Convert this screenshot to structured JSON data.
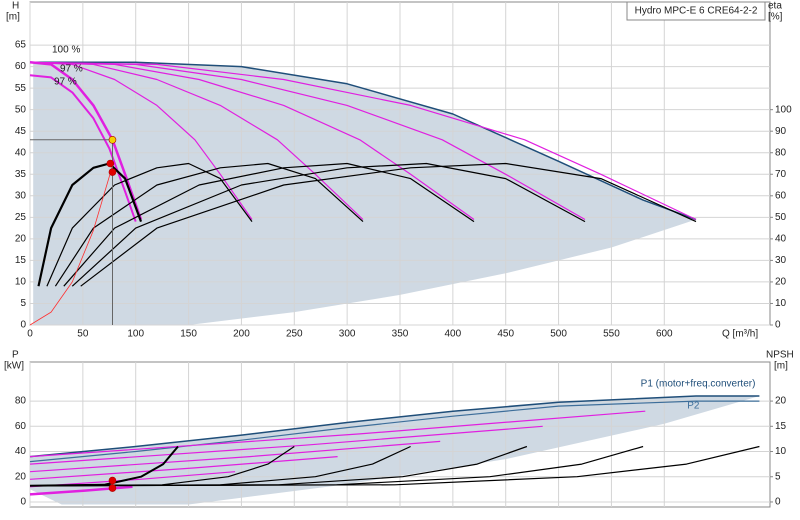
{
  "chart_data": [
    {
      "type": "line",
      "ylabel": "H",
      "yunit": "[m]",
      "y2label": "eta",
      "y2unit": "[%]",
      "xlabel": "Q [m³/h]",
      "box": "Hydro MPC-E 6 CRE64-2-2",
      "annotations": [
        "100 %",
        "97 %",
        "97 %"
      ],
      "xlim": [
        0,
        700
      ],
      "xticks": [
        0,
        50,
        100,
        150,
        200,
        250,
        300,
        350,
        400,
        450,
        500,
        550,
        600
      ],
      "ylim": [
        0,
        75
      ],
      "yticks": [
        0,
        5,
        10,
        15,
        20,
        25,
        30,
        35,
        40,
        45,
        50,
        55,
        60,
        65
      ],
      "y2lim": [
        0,
        150
      ],
      "y2ticks": [
        0,
        10,
        20,
        30,
        40,
        50,
        60,
        70,
        80,
        90,
        100
      ],
      "grid": true,
      "series": [
        {
          "color": "#cfd9e3",
          "fill": true,
          "x": [
            3,
            100,
            200,
            300,
            400,
            500,
            580,
            630,
            550,
            450,
            350,
            250,
            150,
            3
          ],
          "values": [
            61,
            61,
            60,
            56,
            49,
            38,
            29,
            24.5,
            18,
            12,
            7,
            3,
            0,
            0
          ]
        },
        {
          "color": "#1f4e79",
          "width": 1.5,
          "x": [
            0,
            100,
            200,
            300,
            400,
            500,
            580,
            630
          ],
          "values": [
            61,
            61,
            60,
            56,
            49,
            38,
            29,
            24.5
          ]
        },
        {
          "color": "#e020e0",
          "width": 2.5,
          "x": [
            0,
            20,
            40,
            60,
            78,
            90,
            105
          ],
          "values": [
            61,
            60.5,
            57,
            51,
            43,
            35,
            24.5
          ]
        },
        {
          "color": "#e020e0",
          "width": 1.2,
          "x": [
            0,
            40,
            80,
            120,
            156,
            180,
            210
          ],
          "values": [
            61,
            60.5,
            57,
            51,
            43,
            35,
            24.5
          ]
        },
        {
          "color": "#e020e0",
          "width": 1.2,
          "x": [
            0,
            60,
            120,
            180,
            234,
            270,
            315
          ],
          "values": [
            61,
            60.5,
            57,
            51,
            43,
            35,
            24.5
          ]
        },
        {
          "color": "#e020e0",
          "width": 1.2,
          "x": [
            0,
            80,
            160,
            240,
            312,
            360,
            420
          ],
          "values": [
            61,
            60.5,
            57,
            51,
            43,
            35,
            24.5
          ]
        },
        {
          "color": "#e020e0",
          "width": 1.2,
          "x": [
            0,
            100,
            200,
            300,
            390,
            450,
            525
          ],
          "values": [
            61,
            60.5,
            57,
            51,
            43,
            35,
            24.5
          ]
        },
        {
          "color": "#e020e0",
          "width": 1.2,
          "x": [
            0,
            120,
            240,
            360,
            468,
            540,
            630
          ],
          "values": [
            61,
            60.5,
            57,
            51,
            43,
            35,
            24.5
          ]
        },
        {
          "color": "#e020e0",
          "width": 2,
          "x": [
            0,
            20,
            40,
            60,
            75,
            90,
            100
          ],
          "values": [
            58,
            57.5,
            54,
            48,
            41,
            31,
            24
          ]
        },
        {
          "color": "#000000",
          "width": 2.2,
          "axis": "y2",
          "x": [
            8,
            20,
            40,
            60,
            75,
            90,
            105
          ],
          "values": [
            18,
            45,
            65,
            73,
            75,
            68,
            48
          ]
        },
        {
          "color": "#000000",
          "width": 1.2,
          "axis": "y2",
          "x": [
            16,
            40,
            80,
            120,
            150,
            180,
            210
          ],
          "values": [
            18,
            45,
            65,
            73,
            75,
            68,
            48
          ]
        },
        {
          "color": "#000000",
          "width": 1.2,
          "axis": "y2",
          "x": [
            24,
            60,
            120,
            180,
            225,
            270,
            315
          ],
          "values": [
            18,
            45,
            65,
            73,
            75,
            68,
            48
          ]
        },
        {
          "color": "#000000",
          "width": 1.2,
          "axis": "y2",
          "x": [
            32,
            80,
            160,
            240,
            300,
            360,
            420
          ],
          "values": [
            18,
            45,
            65,
            73,
            75,
            68,
            48
          ]
        },
        {
          "color": "#000000",
          "width": 1.2,
          "axis": "y2",
          "x": [
            40,
            100,
            200,
            300,
            375,
            450,
            525
          ],
          "values": [
            18,
            45,
            65,
            73,
            75,
            68,
            48
          ]
        },
        {
          "color": "#000000",
          "width": 1.2,
          "axis": "y2",
          "x": [
            48,
            120,
            240,
            360,
            450,
            540,
            630
          ],
          "values": [
            18,
            45,
            65,
            73,
            75,
            68,
            48
          ]
        },
        {
          "color": "#ff3030",
          "width": 0.8,
          "x": [
            0,
            20,
            40,
            60,
            78
          ],
          "values": [
            0,
            3,
            10,
            22,
            37
          ]
        },
        {
          "color": "#666666",
          "width": 1,
          "x": [
            0,
            78,
            78
          ],
          "values": [
            43,
            43,
            0
          ]
        },
        {
          "color": "#f5d000",
          "marker": true,
          "x": [
            78
          ],
          "values": [
            43
          ]
        },
        {
          "color": "#e00000",
          "marker": true,
          "x": [
            76,
            78
          ],
          "values": [
            37.5,
            35.5
          ]
        }
      ]
    },
    {
      "type": "line",
      "ylabel": "P",
      "yunit": "[kW]",
      "y2label": "NPSH",
      "y2unit": "[m]",
      "xlim": [
        0,
        700
      ],
      "ylim": [
        -4,
        111
      ],
      "yticks": [
        0,
        20,
        40,
        60,
        80
      ],
      "y2lim": [
        -1,
        27.75
      ],
      "y2ticks": [
        0,
        5,
        10,
        15,
        20
      ],
      "grid": true,
      "series": [
        {
          "color": "#cfd9e3",
          "fill": true,
          "x": [
            0,
            100,
            200,
            300,
            400,
            500,
            630,
            690,
            600,
            450,
            300,
            150,
            30,
            0
          ],
          "values": [
            36,
            44,
            53,
            63,
            72,
            79,
            84,
            84,
            62,
            34,
            14,
            -2,
            -2,
            10
          ]
        },
        {
          "name": "P1 (motor+freq.converter)",
          "color": "#1f4e79",
          "width": 1.5,
          "x": [
            0,
            100,
            200,
            300,
            400,
            500,
            630,
            690
          ],
          "values": [
            36,
            44,
            53,
            63,
            72,
            79,
            84,
            84
          ]
        },
        {
          "name": "P2",
          "color": "#3d6e9a",
          "width": 1.2,
          "x": [
            0,
            100,
            200,
            300,
            400,
            500,
            630,
            690
          ],
          "values": [
            32,
            40,
            49,
            59,
            68,
            76,
            80,
            80
          ]
        },
        {
          "color": "#e020e0",
          "width": 2.5,
          "x": [
            0,
            52,
            97
          ],
          "values": [
            6,
            9,
            12
          ]
        },
        {
          "color": "#e020e0",
          "width": 1.2,
          "x": [
            0,
            104,
            194
          ],
          "values": [
            12,
            18,
            24
          ]
        },
        {
          "color": "#e020e0",
          "width": 1.2,
          "x": [
            0,
            156,
            291
          ],
          "values": [
            18,
            27,
            36
          ]
        },
        {
          "color": "#e020e0",
          "width": 1.2,
          "x": [
            0,
            208,
            388
          ],
          "values": [
            24,
            36,
            48
          ]
        },
        {
          "color": "#e020e0",
          "width": 1.2,
          "x": [
            0,
            260,
            485
          ],
          "values": [
            30,
            45,
            60
          ]
        },
        {
          "color": "#e020e0",
          "width": 1.2,
          "x": [
            0,
            312,
            582
          ],
          "values": [
            36,
            54,
            72
          ]
        },
        {
          "color": "#000000",
          "width": 2,
          "axis": "y2",
          "x": [
            0,
            70,
            105,
            126,
            140
          ],
          "values": [
            3.2,
            3.4,
            5,
            7.5,
            11
          ]
        },
        {
          "color": "#000000",
          "width": 1.2,
          "axis": "y2",
          "x": [
            0,
            125,
            187.5,
            225,
            250
          ],
          "values": [
            3.2,
            3.4,
            5,
            7.5,
            11
          ]
        },
        {
          "color": "#000000",
          "width": 1.2,
          "axis": "y2",
          "x": [
            0,
            180,
            270,
            324,
            360
          ],
          "values": [
            3.2,
            3.4,
            5,
            7.5,
            11
          ]
        },
        {
          "color": "#000000",
          "width": 1.2,
          "axis": "y2",
          "x": [
            0,
            235,
            352.5,
            423,
            470
          ],
          "values": [
            3.2,
            3.4,
            5,
            7.5,
            11
          ]
        },
        {
          "color": "#000000",
          "width": 1.2,
          "axis": "y2",
          "x": [
            0,
            290,
            435,
            522,
            580
          ],
          "values": [
            3.2,
            3.4,
            5,
            7.5,
            11
          ]
        },
        {
          "color": "#000000",
          "width": 1.2,
          "axis": "y2",
          "x": [
            0,
            345,
            517.5,
            621,
            690
          ],
          "values": [
            3.2,
            3.4,
            5,
            7.5,
            11
          ]
        },
        {
          "color": "#e00000",
          "marker": true,
          "x": [
            78,
            78
          ],
          "values": [
            17,
            11
          ]
        }
      ]
    }
  ]
}
